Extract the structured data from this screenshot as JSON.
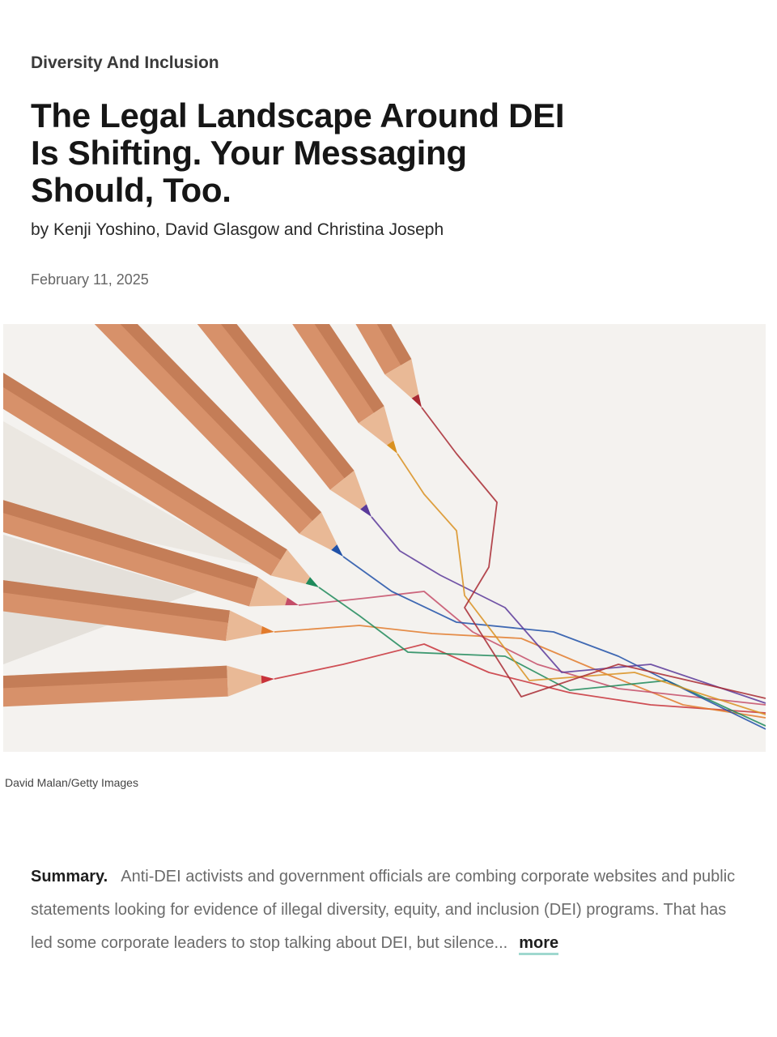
{
  "article": {
    "topic": "Diversity And Inclusion",
    "title": "The Legal Landscape Around DEI Is Shifting. Your Messaging Should, Too.",
    "byline_prefix": "by",
    "authors": "Kenji Yoshino, David Glasgow and Christina Joseph",
    "date": "February 11, 2025"
  },
  "image": {
    "credit": "David Malan/Getty Images",
    "colors": {
      "background": "#f4f2ef",
      "pencil_wood": "#d7916a",
      "pencil_shadow": "#b56d47",
      "pencil_tip_wood": "#e9b996",
      "red": "#c8323a",
      "orange": "#e27b2c",
      "pink": "#c44d68",
      "green": "#1f8a5b",
      "blue": "#2051a8",
      "purple": "#5a3a9a",
      "amber": "#d99120",
      "crimson": "#a82a33"
    }
  },
  "summary": {
    "label": "Summary.",
    "text": "Anti-DEI activists and government officials are combing corporate websites and public statements looking for evidence of illegal diversity, equity, and inclusion (DEI) programs. That has led some corporate leaders to stop talking about DEI, but silence...",
    "more_label": "more"
  }
}
